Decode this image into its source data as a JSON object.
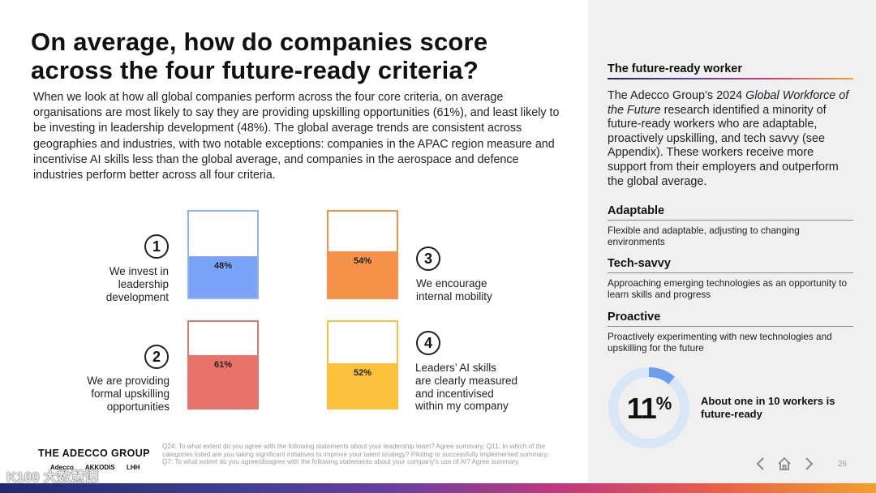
{
  "title": "On average, how do companies score across the four future-ready criteria?",
  "intro": "When we look at how all global companies perform across the four core criteria, on average organisations are most likely to say they are providing upskilling opportunities (61%), and least likely to be investing in leadership development (48%). The global average trends are consistent across geographies and industries, with two notable exceptions: companies in the APAC region measure and incentivise AI skills less than the global average, and companies in the aerospace and defence industries perform better across all four criteria.",
  "chart_data": {
    "type": "bar",
    "categories": [
      "We invest in leadership development",
      "We are providing formal upskilling opportunities",
      "We encourage internal mobility",
      "Leaders' AI skills are clearly measured and incentivised within my company"
    ],
    "values": [
      48,
      61,
      54,
      52
    ],
    "ylim": [
      0,
      100
    ],
    "items": [
      {
        "number": "1",
        "label": "We invest in leadership development",
        "value": 48,
        "value_label": "48%",
        "color": "#7aa3f7",
        "border": "#8fb3f5"
      },
      {
        "number": "2",
        "label": "We are providing formal upskilling opportunities",
        "value": 61,
        "value_label": "61%",
        "color": "#e8736b",
        "border": "#e8736b"
      },
      {
        "number": "3",
        "label": "We encourage internal mobility",
        "value": 54,
        "value_label": "54%",
        "color": "#f6914a",
        "border": "#f6914a"
      },
      {
        "number": "4",
        "label": "Leaders’ AI skills are clearly measured and incentivised within my company",
        "value": 52,
        "value_label": "52%",
        "color": "#fcc13c",
        "border": "#fcc13c"
      }
    ]
  },
  "criteria_labels": {
    "c1": [
      "We invest in",
      "leadership",
      "development"
    ],
    "c2": [
      "We are providing",
      "formal upskilling",
      "opportunities"
    ],
    "c3": [
      "We encourage",
      "internal mobility"
    ],
    "c4": [
      "Leaders’ AI skills",
      "are clearly measured",
      "and incentivised",
      "within my company"
    ]
  },
  "right_panel": {
    "heading": "The future-ready worker",
    "body_pre": "The Adecco Group’s 2024 ",
    "body_italic": "Global Workforce of the Future",
    "body_post": " research identified a minority of future-ready workers who are adaptable, proactively upskilling, and tech savvy (see Appendix). These workers receive more support from their employers and outperform the global average.",
    "traits": [
      {
        "title": "Adaptable",
        "desc": "Flexible and adaptable, adjusting to changing environments"
      },
      {
        "title": "Tech-savvy",
        "desc": "Approaching emerging technologies as an opportunity to learn skills and progress"
      },
      {
        "title": "Proactive",
        "desc": "Proactively experimenting with new technologies and upskilling for the future"
      }
    ],
    "stat_value": "11",
    "stat_unit": "%",
    "stat_fraction": 0.11,
    "stat_caption": "About one in 10 workers is future-ready",
    "accent_color": "#6a9ff0",
    "donut_track_color": "#d8e6f7"
  },
  "footer": {
    "logo": "THE ADECCO GROUP",
    "sublogos": [
      "Adecco",
      "AKKODIS",
      "LHH"
    ],
    "footnote": "Q24: To what extent do you agree with the following statements about your leadership team? Agree summary; Q11: In which of the categories listed are you taking significant initiatives to improve your talent strategy? Piloting or successfully implemented summary; Q7: To what extent do you agree/disagree with the following statements about your company's use of AI? Agree summary.",
    "page_number": "26",
    "watermark": "K100 大数慧谭"
  }
}
